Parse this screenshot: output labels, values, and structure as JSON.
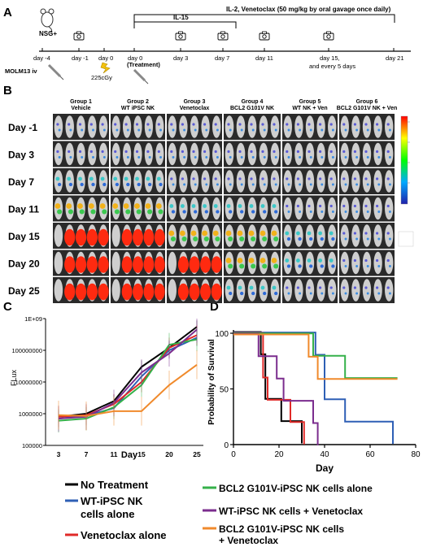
{
  "panel_labels": {
    "a": "A",
    "b": "B",
    "c": "C",
    "d": "D"
  },
  "timeline": {
    "mouse_label": "NSG+",
    "bracket_ilv": "IL-2, Venetoclax (50 mg/kg by oral gavage once daily)",
    "bracket_il15": "IL-15",
    "days": [
      "day -4",
      "day -1",
      "day 0",
      "day 0",
      "day 3",
      "day 7",
      "day 11",
      "day 15,",
      "day 21"
    ],
    "day15_extra": "and every 5 days",
    "molm": "MOLM13 iv",
    "radiation": "225cGy",
    "treatment": "(Treatment)"
  },
  "imaging": {
    "groups": [
      {
        "name": "Group 1",
        "sub": "Vehicle"
      },
      {
        "name": "Group 2",
        "sub": "WT iPSC NK"
      },
      {
        "name": "Group 3",
        "sub": "Venetoclax"
      },
      {
        "name": "Group 4",
        "sub": "BCL2 G101V NK"
      },
      {
        "name": "Group 5",
        "sub": "WT NK + Ven"
      },
      {
        "name": "Group 6",
        "sub": "BCL2 G101V NK + Ven"
      }
    ],
    "rows": [
      "Day -1",
      "Day 3",
      "Day 7",
      "Day 11",
      "Day 15",
      "Day 20",
      "Day 25"
    ],
    "signal": [
      [
        1,
        1,
        1,
        1,
        1,
        1
      ],
      [
        1,
        1,
        1,
        1,
        1,
        1
      ],
      [
        2,
        2,
        1,
        1,
        1,
        1
      ],
      [
        3,
        3,
        2,
        2,
        1,
        1
      ],
      [
        4,
        4,
        3,
        3,
        2,
        1
      ],
      [
        4,
        4,
        4,
        3,
        2,
        1
      ],
      [
        4,
        4,
        4,
        2,
        1,
        1
      ]
    ]
  },
  "chart_data": [
    {
      "type": "line",
      "ylabel": "FLux",
      "xlabel": "Day",
      "yscale": "log",
      "ylim": [
        100000,
        1000000000
      ],
      "yticks": [
        {
          "value": 100000,
          "label": "100000"
        },
        {
          "value": 1000000,
          "label": "1000000"
        },
        {
          "value": 10000000,
          "label": "10000000"
        },
        {
          "value": 100000000,
          "label": "100000000"
        },
        {
          "value": 1000000000,
          "label": "1E+09"
        }
      ],
      "x": [
        3,
        7,
        11,
        15,
        20,
        25
      ],
      "x_labels": [
        "3",
        "7",
        "11",
        "15",
        "20",
        "25"
      ],
      "series": [
        {
          "name": "No Treatment",
          "color": "#000000",
          "values": [
            800000,
            1000000,
            2500000,
            30000000,
            120000000,
            550000000
          ]
        },
        {
          "name": "WT-iPSC NK cells alone",
          "color": "#2e5fb5",
          "values": [
            700000,
            850000,
            1500000,
            15000000,
            100000000,
            250000000
          ]
        },
        {
          "name": "Venetoclax alone",
          "color": "#e02a28",
          "values": [
            800000,
            900000,
            2000000,
            10000000,
            120000000,
            300000000
          ]
        },
        {
          "name": "BCL2 G101V-iPSC NK cells alone",
          "color": "#35b14a",
          "values": [
            600000,
            700000,
            1600000,
            8000000,
            150000000,
            220000000
          ]
        },
        {
          "name": "WT-iPSC NK cells + Venetoclax",
          "color": "#7b2d8e",
          "values": [
            700000,
            800000,
            2200000,
            20000000,
            80000000,
            450000000
          ]
        },
        {
          "name": "BCL2 G101V-iPSC NK cells + Venetoclax",
          "color": "#f08a2c",
          "values": [
            900000,
            850000,
            1200000,
            1200000,
            8000000,
            35000000
          ]
        }
      ]
    },
    {
      "type": "line",
      "ylabel": "Probability of Survival",
      "xlabel": "Day",
      "ylim": [
        0,
        100
      ],
      "xlim": [
        0,
        80
      ],
      "yticks": [
        0,
        50,
        100
      ],
      "xticks": [
        0,
        20,
        40,
        60,
        80
      ],
      "series": [
        {
          "name": "No Treatment",
          "color": "#000000",
          "steps": [
            [
              0,
              100
            ],
            [
              12,
              100
            ],
            [
              12,
              80
            ],
            [
              14,
              80
            ],
            [
              14,
              40
            ],
            [
              21,
              40
            ],
            [
              21,
              20
            ],
            [
              30,
              20
            ],
            [
              30,
              0
            ]
          ]
        },
        {
          "name": "WT-iPSC NK cells alone",
          "color": "#2e5fb5",
          "steps": [
            [
              0,
              100
            ],
            [
              36,
              100
            ],
            [
              36,
              80
            ],
            [
              40,
              80
            ],
            [
              40,
              40
            ],
            [
              49,
              40
            ],
            [
              49,
              20
            ],
            [
              70,
              20
            ],
            [
              70,
              0
            ]
          ]
        },
        {
          "name": "Venetoclax alone",
          "color": "#e02a28",
          "steps": [
            [
              0,
              100
            ],
            [
              13,
              100
            ],
            [
              13,
              60
            ],
            [
              15,
              60
            ],
            [
              15,
              40
            ],
            [
              25,
              40
            ],
            [
              25,
              20
            ],
            [
              31,
              20
            ],
            [
              31,
              0
            ]
          ]
        },
        {
          "name": "BCL2 G101V-iPSC NK cells alone",
          "color": "#35b14a",
          "steps": [
            [
              0,
              100
            ],
            [
              35,
              100
            ],
            [
              35,
              80
            ],
            [
              49,
              80
            ],
            [
              49,
              60
            ],
            [
              72,
              60
            ]
          ]
        },
        {
          "name": "WT-iPSC NK cells + Venetoclax",
          "color": "#7b2d8e",
          "steps": [
            [
              0,
              100
            ],
            [
              11,
              100
            ],
            [
              11,
              80
            ],
            [
              19,
              80
            ],
            [
              19,
              60
            ],
            [
              22,
              60
            ],
            [
              22,
              40
            ],
            [
              35,
              40
            ],
            [
              35,
              20
            ],
            [
              37,
              20
            ],
            [
              37,
              0
            ]
          ]
        },
        {
          "name": "BCL2 G101V-iPSC NK cells + Venetoclax",
          "color": "#f08a2c",
          "steps": [
            [
              0,
              100
            ],
            [
              33,
              100
            ],
            [
              33,
              80
            ],
            [
              37,
              80
            ],
            [
              37,
              60
            ],
            [
              72,
              60
            ]
          ]
        }
      ]
    }
  ],
  "legend": [
    {
      "name": "No Treatment",
      "color": "#000000"
    },
    {
      "name": "WT-iPSC NK cells alone",
      "color": "#2e5fb5"
    },
    {
      "name": "Venetoclax alone",
      "color": "#e02a28"
    },
    {
      "name": "BCL2 G101V-iPSC NK cells alone",
      "color": "#35b14a"
    },
    {
      "name": "WT-iPSC NK cells + Venetoclax",
      "color": "#7b2d8e"
    },
    {
      "name": "BCL2 G101V-iPSC NK cells + Venetoclax",
      "color": "#f08a2c"
    }
  ]
}
